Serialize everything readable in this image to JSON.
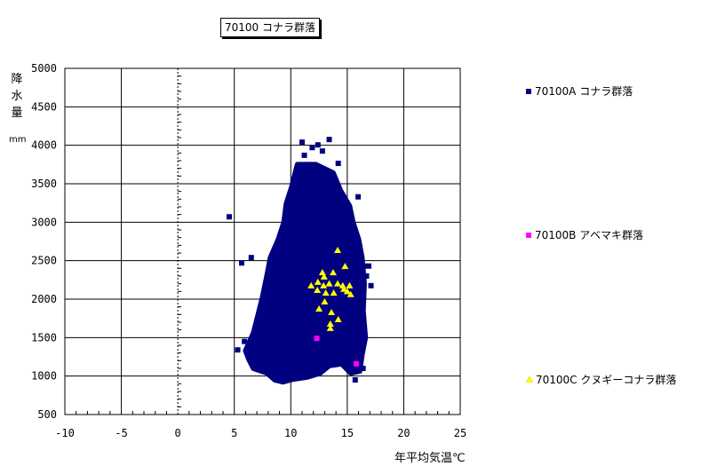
{
  "chart_data": {
    "type": "scatter",
    "title": "70100 コナラ群落",
    "xlabel": "年平均気温℃",
    "ylabel": "降水量",
    "yunit": "mm",
    "xlim": [
      -10,
      25
    ],
    "ylim": [
      500,
      5000
    ],
    "xticks": [
      "-10",
      "-5",
      "0",
      "5",
      "10",
      "15",
      "20",
      "25"
    ],
    "yticks": [
      "500",
      "1000",
      "1500",
      "2000",
      "2500",
      "3000",
      "3500",
      "4000",
      "4500",
      "5000"
    ],
    "grid": true,
    "legend_position": "right",
    "series": [
      {
        "name": "70100A コナラ群落",
        "marker": "square",
        "color": "#000080",
        "dense_region_outline": [
          [
            10.6,
            3750
          ],
          [
            12.2,
            3750
          ],
          [
            13.75,
            3640
          ],
          [
            14.4,
            3410
          ],
          [
            15.2,
            3210
          ],
          [
            15.5,
            3000
          ],
          [
            16.0,
            2775
          ],
          [
            16.3,
            2540
          ],
          [
            16.5,
            2200
          ],
          [
            16.4,
            1850
          ],
          [
            16.6,
            1500
          ],
          [
            16.3,
            1275
          ],
          [
            16.1,
            1065
          ],
          [
            15.3,
            1040
          ],
          [
            14.5,
            1160
          ],
          [
            13.4,
            1135
          ],
          [
            12.6,
            1040
          ],
          [
            11.4,
            985
          ],
          [
            10.2,
            960
          ],
          [
            9.3,
            925
          ],
          [
            8.6,
            950
          ],
          [
            7.9,
            1040
          ],
          [
            6.7,
            1100
          ],
          [
            6.3,
            1215
          ],
          [
            6.0,
            1330
          ],
          [
            6.7,
            1560
          ],
          [
            7.1,
            1790
          ],
          [
            7.5,
            2025
          ],
          [
            7.9,
            2310
          ],
          [
            8.2,
            2540
          ],
          [
            8.9,
            2775
          ],
          [
            9.4,
            3000
          ],
          [
            9.6,
            3235
          ],
          [
            10.1,
            3465
          ],
          [
            10.4,
            3640
          ]
        ],
        "points": [
          [
            4.55,
            3070
          ],
          [
            5.65,
            2470
          ],
          [
            6.5,
            2540
          ],
          [
            5.3,
            1340
          ],
          [
            5.9,
            1450
          ],
          [
            11.0,
            4040
          ],
          [
            13.4,
            4075
          ],
          [
            12.4,
            4005
          ],
          [
            11.9,
            3970
          ],
          [
            11.2,
            3870
          ],
          [
            12.8,
            3925
          ],
          [
            14.2,
            3765
          ],
          [
            15.96,
            3330
          ],
          [
            16.5,
            2430
          ],
          [
            16.9,
            2430
          ],
          [
            17.1,
            2175
          ],
          [
            16.7,
            2300
          ],
          [
            15.7,
            950
          ],
          [
            6.6,
            1250
          ],
          [
            7.2,
            1750
          ],
          [
            10.8,
            3600
          ],
          [
            13.9,
            3550
          ],
          [
            16.2,
            1650
          ],
          [
            16.4,
            1100
          ]
        ]
      },
      {
        "name": "70100B アベマキ群落",
        "marker": "square",
        "color": "#FF00FF",
        "points": [
          [
            12.3,
            1490
          ],
          [
            15.8,
            1160
          ]
        ]
      },
      {
        "name": "70100C クヌギーコナラ群落",
        "marker": "triangle",
        "color": "#FFFF00",
        "points": [
          [
            14.15,
            2635
          ],
          [
            12.8,
            2345
          ],
          [
            13.75,
            2345
          ],
          [
            14.8,
            2425
          ],
          [
            11.8,
            2175
          ],
          [
            12.4,
            2220
          ],
          [
            12.95,
            2290
          ],
          [
            13.4,
            2200
          ],
          [
            14.15,
            2200
          ],
          [
            14.6,
            2175
          ],
          [
            15.2,
            2175
          ],
          [
            12.35,
            2115
          ],
          [
            13.1,
            2080
          ],
          [
            13.8,
            2080
          ],
          [
            14.7,
            2130
          ],
          [
            15.3,
            2060
          ],
          [
            13.0,
            1965
          ],
          [
            12.5,
            1873
          ],
          [
            13.6,
            1827
          ],
          [
            13.5,
            1677
          ],
          [
            14.2,
            1735
          ],
          [
            13.5,
            1620
          ],
          [
            15.0,
            2100
          ],
          [
            12.9,
            2175
          ]
        ]
      }
    ]
  }
}
